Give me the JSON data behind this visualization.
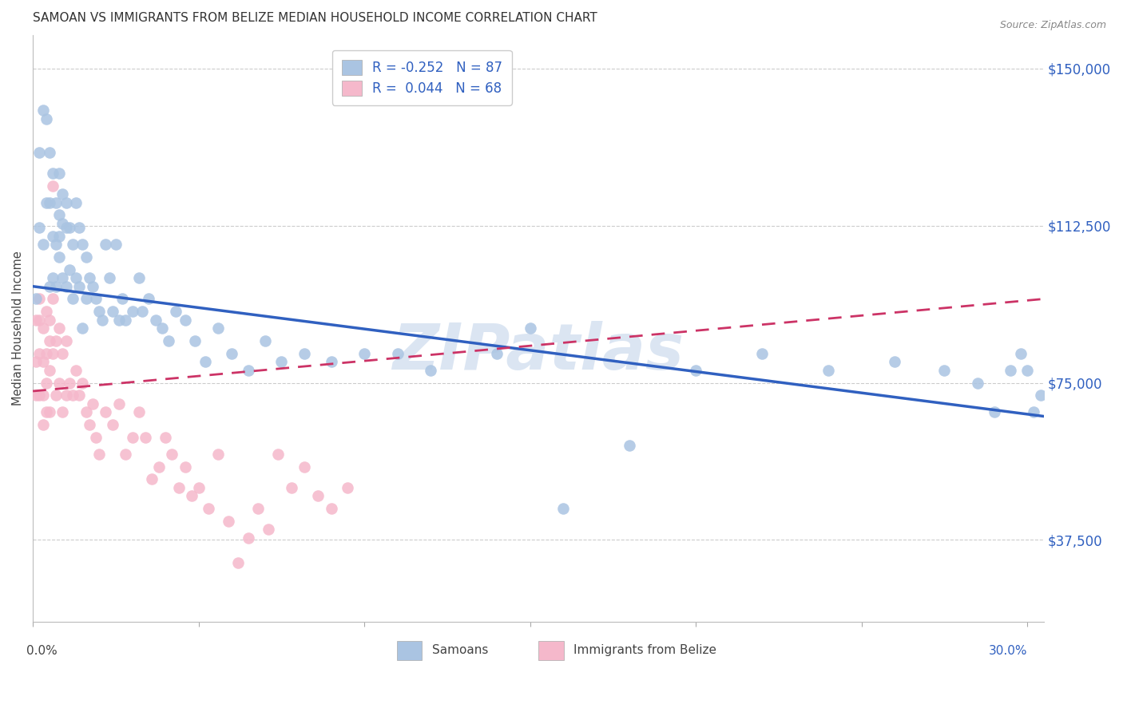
{
  "title": "SAMOAN VS IMMIGRANTS FROM BELIZE MEDIAN HOUSEHOLD INCOME CORRELATION CHART",
  "source": "Source: ZipAtlas.com",
  "ylabel": "Median Household Income",
  "ytick_labels": [
    "$37,500",
    "$75,000",
    "$112,500",
    "$150,000"
  ],
  "ytick_values": [
    37500,
    75000,
    112500,
    150000
  ],
  "ymin": 18000,
  "ymax": 158000,
  "xmin": 0.0,
  "xmax": 0.305,
  "blue_R": "-0.252",
  "blue_N": "87",
  "pink_R": "0.044",
  "pink_N": "68",
  "blue_color": "#aac4e2",
  "pink_color": "#f5b8cb",
  "blue_line_color": "#3060c0",
  "pink_line_color": "#cc3366",
  "legend_label_blue": "Samoans",
  "legend_label_pink": "Immigrants from Belize",
  "watermark": "ZIPatlas",
  "title_fontsize": 11,
  "blue_scatter_x": [
    0.001,
    0.002,
    0.002,
    0.003,
    0.003,
    0.004,
    0.004,
    0.005,
    0.005,
    0.005,
    0.006,
    0.006,
    0.006,
    0.007,
    0.007,
    0.007,
    0.008,
    0.008,
    0.008,
    0.008,
    0.009,
    0.009,
    0.009,
    0.01,
    0.01,
    0.01,
    0.011,
    0.011,
    0.012,
    0.012,
    0.013,
    0.013,
    0.014,
    0.014,
    0.015,
    0.015,
    0.016,
    0.016,
    0.017,
    0.018,
    0.019,
    0.02,
    0.021,
    0.022,
    0.023,
    0.024,
    0.025,
    0.026,
    0.027,
    0.028,
    0.03,
    0.032,
    0.033,
    0.035,
    0.037,
    0.039,
    0.041,
    0.043,
    0.046,
    0.049,
    0.052,
    0.056,
    0.06,
    0.065,
    0.07,
    0.075,
    0.082,
    0.09,
    0.1,
    0.11,
    0.12,
    0.14,
    0.15,
    0.16,
    0.18,
    0.2,
    0.22,
    0.24,
    0.26,
    0.275,
    0.285,
    0.29,
    0.295,
    0.298,
    0.3,
    0.302,
    0.304
  ],
  "blue_scatter_y": [
    95000,
    112000,
    130000,
    108000,
    140000,
    118000,
    138000,
    130000,
    118000,
    98000,
    125000,
    110000,
    100000,
    118000,
    108000,
    98000,
    125000,
    115000,
    110000,
    105000,
    120000,
    113000,
    100000,
    118000,
    112000,
    98000,
    112000,
    102000,
    108000,
    95000,
    118000,
    100000,
    112000,
    98000,
    108000,
    88000,
    105000,
    95000,
    100000,
    98000,
    95000,
    92000,
    90000,
    108000,
    100000,
    92000,
    108000,
    90000,
    95000,
    90000,
    92000,
    100000,
    92000,
    95000,
    90000,
    88000,
    85000,
    92000,
    90000,
    85000,
    80000,
    88000,
    82000,
    78000,
    85000,
    80000,
    82000,
    80000,
    82000,
    82000,
    78000,
    82000,
    88000,
    45000,
    60000,
    78000,
    82000,
    78000,
    80000,
    78000,
    75000,
    68000,
    78000,
    82000,
    78000,
    68000,
    72000
  ],
  "pink_scatter_x": [
    0.001,
    0.001,
    0.001,
    0.002,
    0.002,
    0.002,
    0.002,
    0.003,
    0.003,
    0.003,
    0.003,
    0.004,
    0.004,
    0.004,
    0.004,
    0.005,
    0.005,
    0.005,
    0.005,
    0.006,
    0.006,
    0.006,
    0.007,
    0.007,
    0.008,
    0.008,
    0.009,
    0.009,
    0.01,
    0.01,
    0.011,
    0.012,
    0.013,
    0.014,
    0.015,
    0.016,
    0.017,
    0.018,
    0.019,
    0.02,
    0.022,
    0.024,
    0.026,
    0.028,
    0.03,
    0.032,
    0.034,
    0.036,
    0.038,
    0.04,
    0.042,
    0.044,
    0.046,
    0.048,
    0.05,
    0.053,
    0.056,
    0.059,
    0.062,
    0.065,
    0.068,
    0.071,
    0.074,
    0.078,
    0.082,
    0.086,
    0.09,
    0.095
  ],
  "pink_scatter_y": [
    90000,
    80000,
    72000,
    95000,
    90000,
    82000,
    72000,
    88000,
    80000,
    72000,
    65000,
    92000,
    82000,
    75000,
    68000,
    90000,
    85000,
    78000,
    68000,
    95000,
    122000,
    82000,
    85000,
    72000,
    88000,
    75000,
    82000,
    68000,
    85000,
    72000,
    75000,
    72000,
    78000,
    72000,
    75000,
    68000,
    65000,
    70000,
    62000,
    58000,
    68000,
    65000,
    70000,
    58000,
    62000,
    68000,
    62000,
    52000,
    55000,
    62000,
    58000,
    50000,
    55000,
    48000,
    50000,
    45000,
    58000,
    42000,
    32000,
    38000,
    45000,
    40000,
    58000,
    50000,
    55000,
    48000,
    45000,
    50000
  ],
  "blue_trend_x": [
    0.0,
    0.305
  ],
  "blue_trend_y": [
    98000,
    67000
  ],
  "pink_trend_x": [
    0.0,
    0.305
  ],
  "pink_trend_y": [
    73000,
    95000
  ]
}
